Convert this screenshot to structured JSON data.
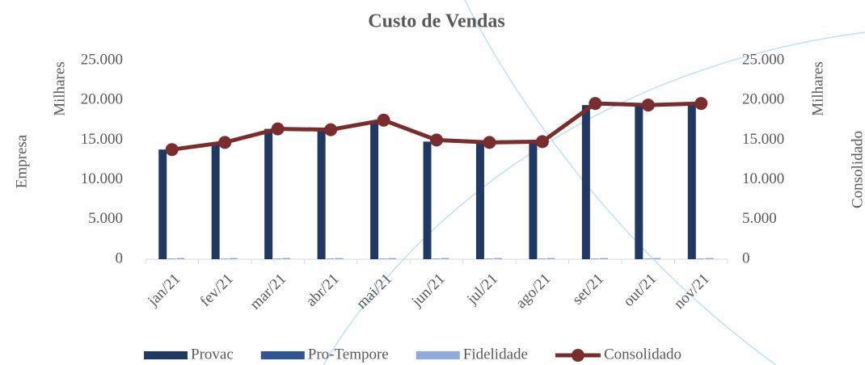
{
  "chart_data": {
    "type": "bar_line",
    "title": "Custo de Vendas",
    "y_label": "Milhares",
    "y2_label": "Milhares",
    "y_outer_label": "Empresa",
    "y2_outer_label": "Consolidado",
    "categories": [
      "jan/21",
      "fev/21",
      "mar/21",
      "abr/21",
      "mai/21",
      "jun/21",
      "jul/21",
      "ago/21",
      "set/21",
      "out/21",
      "nov/21"
    ],
    "series": [
      {
        "name": "Provac",
        "type": "bar",
        "color": "#1f3864",
        "values": [
          13800,
          14500,
          16400,
          16300,
          17400,
          14800,
          14700,
          14600,
          19400,
          19400,
          19700
        ]
      },
      {
        "name": "Pro-Tempore",
        "type": "bar",
        "color": "#2f5597",
        "values": [
          50,
          50,
          50,
          50,
          50,
          50,
          50,
          50,
          50,
          50,
          50
        ]
      },
      {
        "name": "Fidelidade",
        "type": "bar",
        "color": "#8faadc",
        "values": [
          150,
          150,
          150,
          150,
          150,
          150,
          150,
          150,
          150,
          150,
          150
        ]
      },
      {
        "name": "Consolidado",
        "type": "line",
        "axis": "y2",
        "color": "#7b2c2c",
        "values": [
          13800,
          14700,
          16400,
          16300,
          17500,
          15000,
          14700,
          14800,
          19600,
          19400,
          19600
        ]
      }
    ],
    "ylim": [
      0,
      25000
    ],
    "yticks": [
      0,
      {
        "value": 5000,
        "label": "5.000"
      },
      {
        "value": 10000,
        "label": "10.000"
      },
      {
        "value": 15000,
        "label": "15.000"
      },
      {
        "value": 20000,
        "label": "20.000"
      },
      {
        "value": 25000,
        "label": "25.000"
      }
    ],
    "y2lim": [
      0,
      25000
    ],
    "y2ticks": [
      0,
      {
        "value": 5000,
        "label": "5.000"
      },
      {
        "value": 10000,
        "label": "10.000"
      },
      {
        "value": 15000,
        "label": "15.000"
      },
      {
        "value": 20000,
        "label": "20.000"
      },
      {
        "value": 25000,
        "label": "25.000"
      }
    ],
    "legend": "bottom"
  }
}
